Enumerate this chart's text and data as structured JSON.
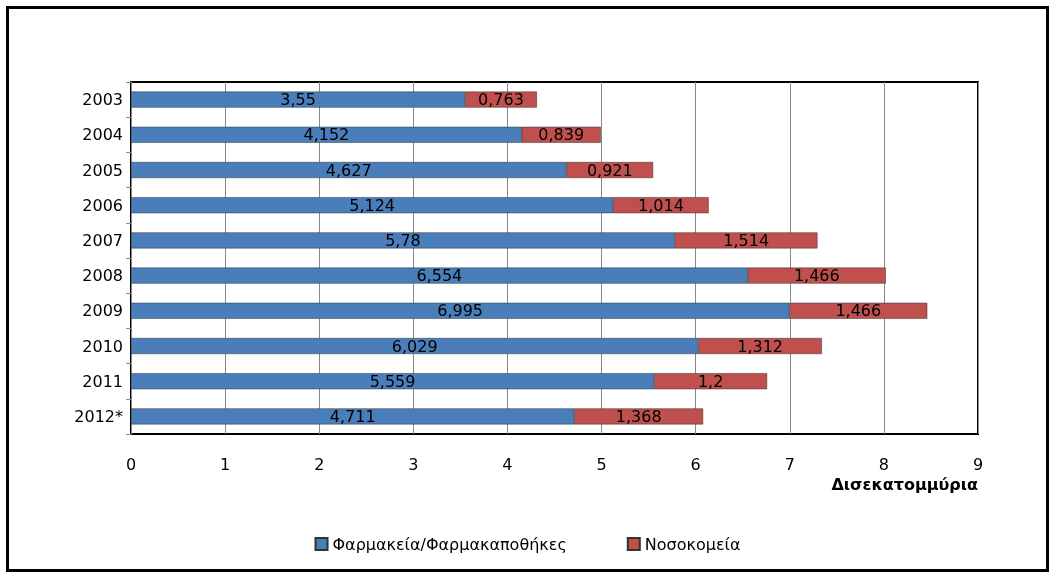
{
  "chart_data": {
    "type": "bar",
    "orientation": "horizontal",
    "stacked": true,
    "categories": [
      "2003",
      "2004",
      "2005",
      "2006",
      "2007",
      "2008",
      "2009",
      "2010",
      "2011",
      "2012*"
    ],
    "series": [
      {
        "name": "Φαρμακεία/Φαρμακαποθήκες",
        "color": "#4a7ebb",
        "values": [
          3.55,
          4.152,
          4.627,
          5.124,
          5.78,
          6.554,
          6.995,
          6.029,
          5.559,
          4.711
        ],
        "value_labels": [
          "3,55",
          "4,152",
          "4,627",
          "5,124",
          "5,78",
          "6,554",
          "6,995",
          "6,029",
          "5,559",
          "4,711"
        ]
      },
      {
        "name": "Νοσοκομεία",
        "color": "#c0504d",
        "values": [
          0.763,
          0.839,
          0.921,
          1.014,
          1.514,
          1.466,
          1.466,
          1.312,
          1.2,
          1.368
        ],
        "value_labels": [
          "0,763",
          "0,839",
          "0,921",
          "1,014",
          "1,514",
          "1,466",
          "1,466",
          "1,312",
          "1,2",
          "1,368"
        ]
      }
    ],
    "xlim": [
      0,
      9
    ],
    "xticks": [
      0,
      1,
      2,
      3,
      4,
      5,
      6,
      7,
      8,
      9
    ],
    "xlabel": "Δισεκατομμύρια",
    "grid": "x",
    "legend": "bottom"
  }
}
